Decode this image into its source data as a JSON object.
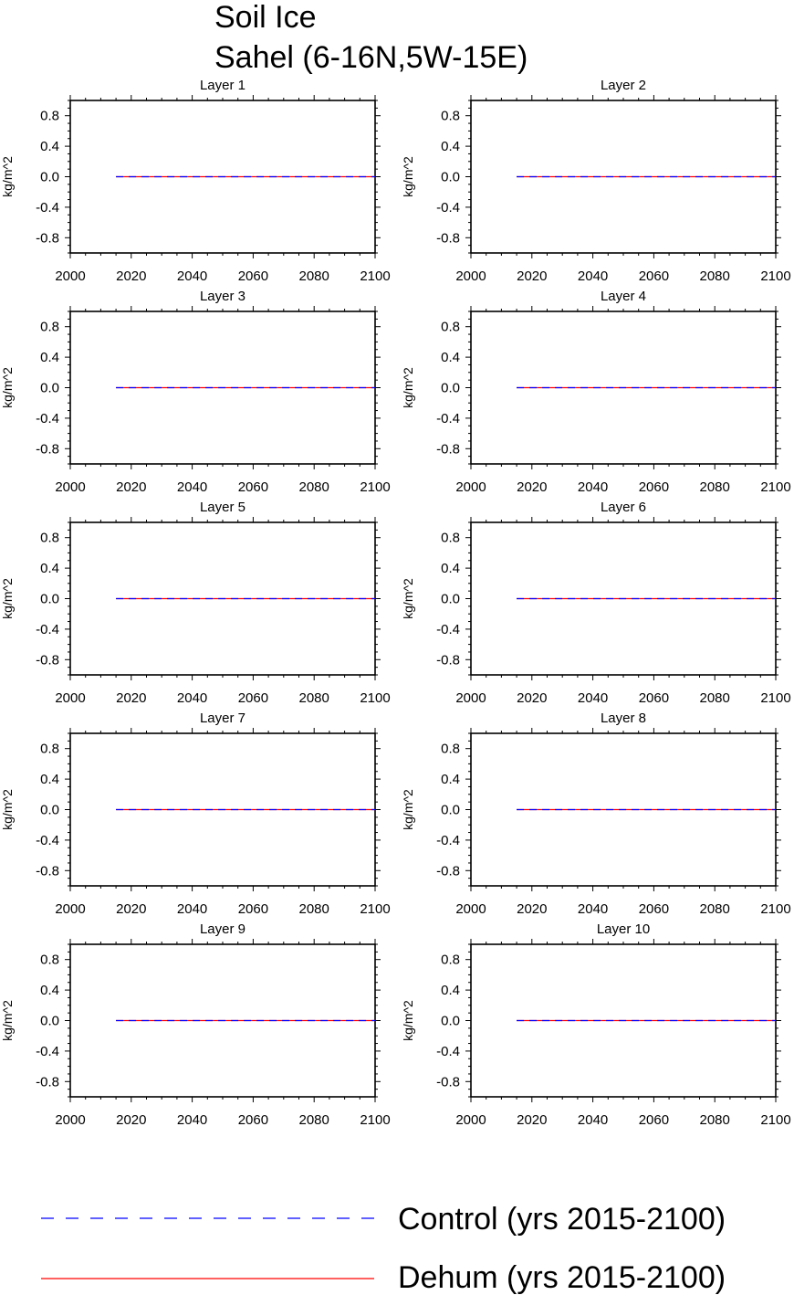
{
  "figure": {
    "title_line1": "Soil Ice",
    "title_line2": "Sahel (6-16N,5W-15E)"
  },
  "legend": [
    {
      "label": "Control (yrs 2015-2100)",
      "color": "#0000ff",
      "style": "dashed"
    },
    {
      "label": "Dehum (yrs 2015-2100)",
      "color": "#ff0000",
      "style": "solid"
    }
  ],
  "chart_data": [
    {
      "type": "line",
      "title": "Layer 1",
      "ylabel": "kg/m^2",
      "xlabel": "",
      "xlim": [
        2000,
        2100
      ],
      "ylim": [
        -1,
        1
      ],
      "xticks": [
        "2000",
        "2020",
        "2040",
        "2060",
        "2080",
        "2100"
      ],
      "yticks": [
        "0.8",
        "0.4",
        "0.0",
        "-0.4",
        "-0.8"
      ],
      "series": [
        {
          "name": "Control (yrs 2015-2100)",
          "x": [
            2015,
            2100
          ],
          "y": [
            0,
            0
          ]
        },
        {
          "name": "Dehum (yrs 2015-2100)",
          "x": [
            2015,
            2100
          ],
          "y": [
            0,
            0
          ]
        }
      ]
    },
    {
      "type": "line",
      "title": "Layer 2",
      "ylabel": "kg/m^2",
      "xlabel": "",
      "xlim": [
        2000,
        2100
      ],
      "ylim": [
        -1,
        1
      ],
      "xticks": [
        "2000",
        "2020",
        "2040",
        "2060",
        "2080",
        "2100"
      ],
      "yticks": [
        "0.8",
        "0.4",
        "0.0",
        "-0.4",
        "-0.8"
      ],
      "series": [
        {
          "name": "Control (yrs 2015-2100)",
          "x": [
            2015,
            2100
          ],
          "y": [
            0,
            0
          ]
        },
        {
          "name": "Dehum (yrs 2015-2100)",
          "x": [
            2015,
            2100
          ],
          "y": [
            0,
            0
          ]
        }
      ]
    },
    {
      "type": "line",
      "title": "Layer 3",
      "ylabel": "kg/m^2",
      "xlabel": "",
      "xlim": [
        2000,
        2100
      ],
      "ylim": [
        -1,
        1
      ],
      "xticks": [
        "2000",
        "2020",
        "2040",
        "2060",
        "2080",
        "2100"
      ],
      "yticks": [
        "0.8",
        "0.4",
        "0.0",
        "-0.4",
        "-0.8"
      ],
      "series": [
        {
          "name": "Control (yrs 2015-2100)",
          "x": [
            2015,
            2100
          ],
          "y": [
            0,
            0
          ]
        },
        {
          "name": "Dehum (yrs 2015-2100)",
          "x": [
            2015,
            2100
          ],
          "y": [
            0,
            0
          ]
        }
      ]
    },
    {
      "type": "line",
      "title": "Layer 4",
      "ylabel": "kg/m^2",
      "xlabel": "",
      "xlim": [
        2000,
        2100
      ],
      "ylim": [
        -1,
        1
      ],
      "xticks": [
        "2000",
        "2020",
        "2040",
        "2060",
        "2080",
        "2100"
      ],
      "yticks": [
        "0.8",
        "0.4",
        "0.0",
        "-0.4",
        "-0.8"
      ],
      "series": [
        {
          "name": "Control (yrs 2015-2100)",
          "x": [
            2015,
            2100
          ],
          "y": [
            0,
            0
          ]
        },
        {
          "name": "Dehum (yrs 2015-2100)",
          "x": [
            2015,
            2100
          ],
          "y": [
            0,
            0
          ]
        }
      ]
    },
    {
      "type": "line",
      "title": "Layer 5",
      "ylabel": "kg/m^2",
      "xlabel": "",
      "xlim": [
        2000,
        2100
      ],
      "ylim": [
        -1,
        1
      ],
      "xticks": [
        "2000",
        "2020",
        "2040",
        "2060",
        "2080",
        "2100"
      ],
      "yticks": [
        "0.8",
        "0.4",
        "0.0",
        "-0.4",
        "-0.8"
      ],
      "series": [
        {
          "name": "Control (yrs 2015-2100)",
          "x": [
            2015,
            2100
          ],
          "y": [
            0,
            0
          ]
        },
        {
          "name": "Dehum (yrs 2015-2100)",
          "x": [
            2015,
            2100
          ],
          "y": [
            0,
            0
          ]
        }
      ]
    },
    {
      "type": "line",
      "title": "Layer 6",
      "ylabel": "kg/m^2",
      "xlabel": "",
      "xlim": [
        2000,
        2100
      ],
      "ylim": [
        -1,
        1
      ],
      "xticks": [
        "2000",
        "2020",
        "2040",
        "2060",
        "2080",
        "2100"
      ],
      "yticks": [
        "0.8",
        "0.4",
        "0.0",
        "-0.4",
        "-0.8"
      ],
      "series": [
        {
          "name": "Control (yrs 2015-2100)",
          "x": [
            2015,
            2100
          ],
          "y": [
            0,
            0
          ]
        },
        {
          "name": "Dehum (yrs 2015-2100)",
          "x": [
            2015,
            2100
          ],
          "y": [
            0,
            0
          ]
        }
      ]
    },
    {
      "type": "line",
      "title": "Layer 7",
      "ylabel": "kg/m^2",
      "xlabel": "",
      "xlim": [
        2000,
        2100
      ],
      "ylim": [
        -1,
        1
      ],
      "xticks": [
        "2000",
        "2020",
        "2040",
        "2060",
        "2080",
        "2100"
      ],
      "yticks": [
        "0.8",
        "0.4",
        "0.0",
        "-0.4",
        "-0.8"
      ],
      "series": [
        {
          "name": "Control (yrs 2015-2100)",
          "x": [
            2015,
            2100
          ],
          "y": [
            0,
            0
          ]
        },
        {
          "name": "Dehum (yrs 2015-2100)",
          "x": [
            2015,
            2100
          ],
          "y": [
            0,
            0
          ]
        }
      ]
    },
    {
      "type": "line",
      "title": "Layer 8",
      "ylabel": "kg/m^2",
      "xlabel": "",
      "xlim": [
        2000,
        2100
      ],
      "ylim": [
        -1,
        1
      ],
      "xticks": [
        "2000",
        "2020",
        "2040",
        "2060",
        "2080",
        "2100"
      ],
      "yticks": [
        "0.8",
        "0.4",
        "0.0",
        "-0.4",
        "-0.8"
      ],
      "series": [
        {
          "name": "Control (yrs 2015-2100)",
          "x": [
            2015,
            2100
          ],
          "y": [
            0,
            0
          ]
        },
        {
          "name": "Dehum (yrs 2015-2100)",
          "x": [
            2015,
            2100
          ],
          "y": [
            0,
            0
          ]
        }
      ]
    },
    {
      "type": "line",
      "title": "Layer 9",
      "ylabel": "kg/m^2",
      "xlabel": "",
      "xlim": [
        2000,
        2100
      ],
      "ylim": [
        -1,
        1
      ],
      "xticks": [
        "2000",
        "2020",
        "2040",
        "2060",
        "2080",
        "2100"
      ],
      "yticks": [
        "0.8",
        "0.4",
        "0.0",
        "-0.4",
        "-0.8"
      ],
      "series": [
        {
          "name": "Control (yrs 2015-2100)",
          "x": [
            2015,
            2100
          ],
          "y": [
            0,
            0
          ]
        },
        {
          "name": "Dehum (yrs 2015-2100)",
          "x": [
            2015,
            2100
          ],
          "y": [
            0,
            0
          ]
        }
      ]
    },
    {
      "type": "line",
      "title": "Layer 10",
      "ylabel": "kg/m^2",
      "xlabel": "",
      "xlim": [
        2000,
        2100
      ],
      "ylim": [
        -1,
        1
      ],
      "xticks": [
        "2000",
        "2020",
        "2040",
        "2060",
        "2080",
        "2100"
      ],
      "yticks": [
        "0.8",
        "0.4",
        "0.0",
        "-0.4",
        "-0.8"
      ],
      "series": [
        {
          "name": "Control (yrs 2015-2100)",
          "x": [
            2015,
            2100
          ],
          "y": [
            0,
            0
          ]
        },
        {
          "name": "Dehum (yrs 2015-2100)",
          "x": [
            2015,
            2100
          ],
          "y": [
            0,
            0
          ]
        }
      ]
    }
  ]
}
